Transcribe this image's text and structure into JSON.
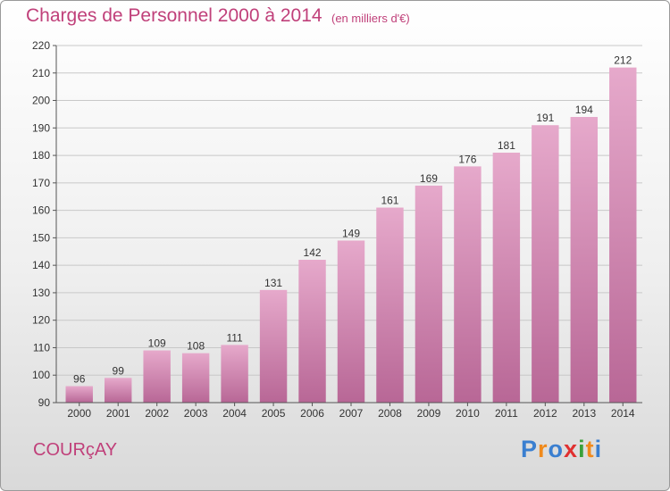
{
  "chart_data": {
    "type": "bar",
    "title": "Charges de Personnel 2000 à 2014",
    "subtitle": "(en milliers d'€)",
    "categories": [
      "2000",
      "2001",
      "2002",
      "2003",
      "2004",
      "2005",
      "2006",
      "2007",
      "2008",
      "2009",
      "2010",
      "2011",
      "2012",
      "2013",
      "2014"
    ],
    "values": [
      96,
      99,
      109,
      108,
      111,
      131,
      142,
      149,
      161,
      169,
      176,
      181,
      191,
      194,
      212
    ],
    "ylim": [
      90,
      220
    ],
    "yticks": [
      90,
      100,
      110,
      120,
      130,
      140,
      150,
      160,
      170,
      180,
      190,
      200,
      210,
      220
    ],
    "grid": true,
    "bar_color": "#d48ab4"
  },
  "footer": {
    "commune": "COURçAY",
    "logo_letters": [
      {
        "ch": "P",
        "color": "#3a7fd0"
      },
      {
        "ch": "r",
        "color": "#f08a1c"
      },
      {
        "ch": "o",
        "color": "#3a7fd0"
      },
      {
        "ch": "x",
        "color": "#e03030"
      },
      {
        "ch": "i",
        "color": "#3aa03a"
      },
      {
        "ch": "t",
        "color": "#f08a1c"
      },
      {
        "ch": "i",
        "color": "#3a7fd0"
      }
    ]
  }
}
